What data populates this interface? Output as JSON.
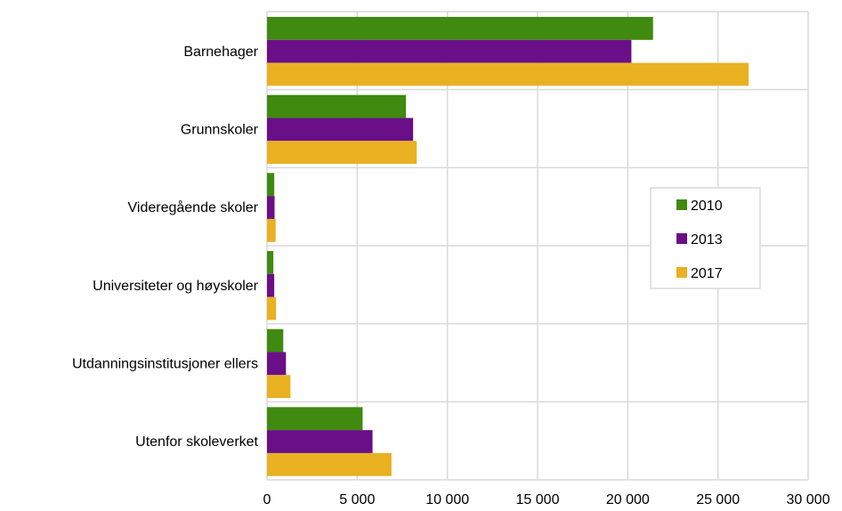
{
  "chart_data": {
    "type": "bar",
    "orientation": "horizontal",
    "categories": [
      "Barnehager",
      "Grunnskoler",
      "Videregående skoler",
      "Universiteter og høyskoler",
      "Utdanningsinstitusjoner ellers",
      "Utenfor skoleverket"
    ],
    "series": [
      {
        "name": "2010",
        "color": "#3f8a0f",
        "values": [
          21400,
          7700,
          400,
          350,
          900,
          5300
        ]
      },
      {
        "name": "2013",
        "color": "#6a0f87",
        "values": [
          20200,
          8100,
          420,
          400,
          1050,
          5850
        ]
      },
      {
        "name": "2017",
        "color": "#e9b122",
        "values": [
          26700,
          8300,
          480,
          500,
          1300,
          6900
        ]
      }
    ],
    "xlim": [
      0,
      30000
    ],
    "xticks": [
      0,
      5000,
      10000,
      15000,
      20000,
      25000,
      30000
    ],
    "xtick_labels": [
      "0",
      "5 000",
      "10 000",
      "15 000",
      "20 000",
      "25 000",
      "30 000"
    ],
    "grid": true,
    "legend_position": "right",
    "title": "",
    "xlabel": "",
    "ylabel": ""
  }
}
